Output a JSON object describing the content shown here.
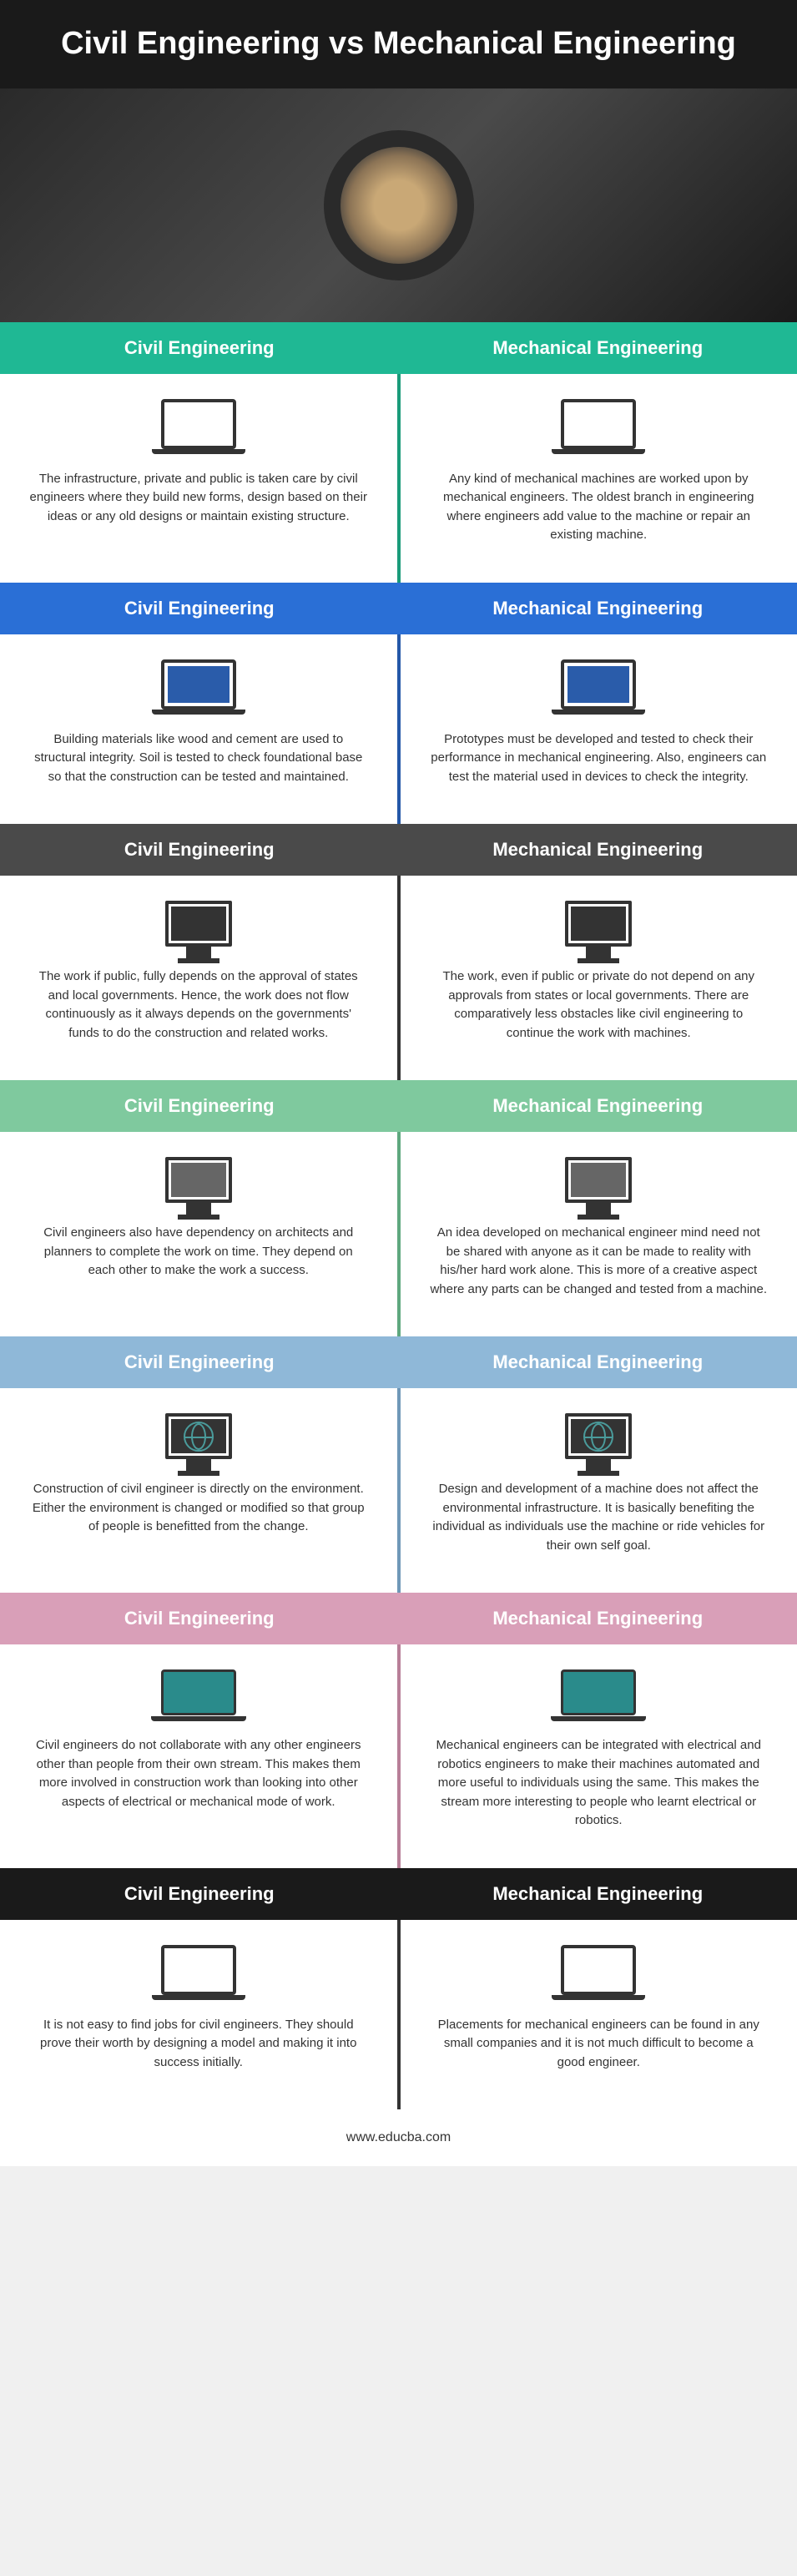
{
  "title": "Civil Engineering vs Mechanical Engineering",
  "left_label": "Civil Engineering",
  "right_label": "Mechanical Engineering",
  "footer": "www.educba.com",
  "colors": {
    "teal": "#1fb894",
    "blue": "#2a6fd6",
    "darkgray": "#4a4a4a",
    "palegreen": "#7fc99e",
    "paleblue": "#8fb8d8",
    "pink": "#d99fb8",
    "black": "#1a1a1a",
    "divider_teal": "#1a9b7a",
    "divider_blue": "#2458a8",
    "divider_dark": "#333333",
    "divider_green": "#5fa87f",
    "divider_lblue": "#6f98b8",
    "divider_pink": "#b87f98"
  },
  "sections": [
    {
      "header_color": "teal",
      "divider": "divider_teal",
      "icon": "laptop-open",
      "left": "The infrastructure, private and public is taken care by civil engineers where they build new forms, design based on their ideas or any old designs or maintain existing structure.",
      "right": "Any kind of mechanical machines are worked upon by mechanical engineers. The oldest branch in engineering where engineers add value to the machine or repair an existing machine."
    },
    {
      "header_color": "blue",
      "divider": "divider_blue",
      "icon": "laptop-bluescreen",
      "left": "Building materials like wood and cement are used to structural integrity. Soil is tested to check foundational base so that the construction can be tested and maintained.",
      "right": "Prototypes must be developed and tested to check their performance in mechanical engineering. Also, engineers can test the material used in devices to check the integrity."
    },
    {
      "header_color": "darkgray",
      "divider": "divider_dark",
      "icon": "monitor-black",
      "left": "The work if public, fully depends on the approval of states and local governments. Hence, the work does not flow continuously as it always depends on the governments' funds to do the construction and related works.",
      "right": "The work, even if public or private do not depend on any approvals from states or local governments. There are comparatively less obstacles like civil engineering to continue the work with machines."
    },
    {
      "header_color": "palegreen",
      "divider": "divider_green",
      "icon": "monitor-gray",
      "left": "Civil engineers also have dependency on architects and planners to complete the work on time. They depend on each other to make the work a success.",
      "right": "An idea developed on mechanical engineer mind need not be shared with anyone as it can be made to reality with his/her hard work alone. This is more of a creative aspect where any parts can be changed and tested from a machine."
    },
    {
      "header_color": "paleblue",
      "divider": "divider_lblue",
      "icon": "monitor-globe",
      "left": "Construction of civil engineer is directly on the environment. Either the environment is changed or modified so that group of people is benefitted from the change.",
      "right": "Design and development of a machine does not affect the environmental infrastructure. It is basically benefiting the individual as individuals use the machine or ride vehicles for their own self goal."
    },
    {
      "header_color": "pink",
      "divider": "divider_pink",
      "icon": "laptop-teal",
      "left": "Civil engineers do not collaborate with any other engineers other than people from their own stream. This makes them more involved in construction work than looking into other aspects of electrical or mechanical mode of work.",
      "right": "Mechanical engineers can be integrated with electrical and robotics engineers to make their machines automated and more useful to individuals using the same. This makes the stream more interesting to people who learnt electrical or robotics."
    },
    {
      "header_color": "black",
      "divider": "divider_dark",
      "icon": "laptop-open",
      "left": "It is not easy to find jobs for civil engineers. They should prove their worth by designing a model and making it into success initially.",
      "right": "Placements for mechanical engineers can be found in any small companies and it is not much difficult to become a good engineer."
    }
  ]
}
